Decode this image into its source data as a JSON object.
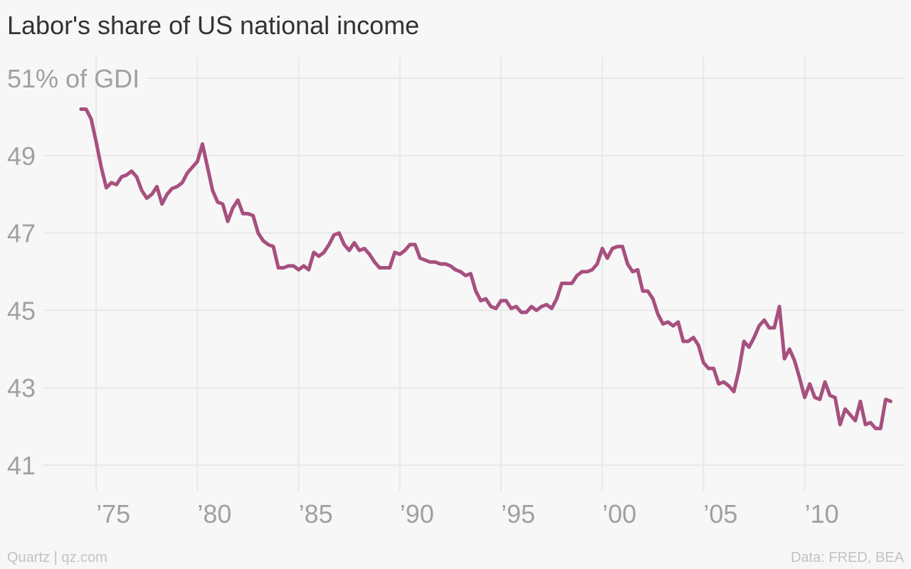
{
  "chart_data": {
    "type": "line",
    "title": "Labor's share of US national income",
    "source": "Data: FRED, BEA",
    "credit": "Quartz | qz.com",
    "x": [
      1974.25,
      1974.5,
      1974.75,
      1975,
      1975.25,
      1975.5,
      1975.75,
      1976,
      1976.25,
      1976.5,
      1976.75,
      1977,
      1977.25,
      1977.5,
      1977.75,
      1978,
      1978.25,
      1978.5,
      1978.75,
      1979,
      1979.25,
      1979.5,
      1979.75,
      1980,
      1980.25,
      1980.5,
      1980.75,
      1981,
      1981.25,
      1981.5,
      1981.75,
      1982,
      1982.25,
      1982.5,
      1982.75,
      1983,
      1983.25,
      1983.5,
      1983.75,
      1984,
      1984.25,
      1984.5,
      1984.75,
      1985,
      1985.25,
      1985.5,
      1985.75,
      1986,
      1986.25,
      1986.5,
      1986.75,
      1987,
      1987.25,
      1987.5,
      1987.75,
      1988,
      1988.25,
      1988.5,
      1988.75,
      1989,
      1989.25,
      1989.5,
      1989.75,
      1990,
      1990.25,
      1990.5,
      1990.75,
      1991,
      1991.25,
      1991.5,
      1991.75,
      1992,
      1992.25,
      1992.5,
      1992.75,
      1993,
      1993.25,
      1993.5,
      1993.75,
      1994,
      1994.25,
      1994.5,
      1994.75,
      1995,
      1995.25,
      1995.5,
      1995.75,
      1996,
      1996.25,
      1996.5,
      1996.75,
      1997,
      1997.25,
      1997.5,
      1997.75,
      1998,
      1998.25,
      1998.5,
      1998.75,
      1999,
      1999.25,
      1999.5,
      1999.75,
      2000,
      2000.25,
      2000.5,
      2000.75,
      2001,
      2001.25,
      2001.5,
      2001.75,
      2002,
      2002.25,
      2002.5,
      2002.75,
      2003,
      2003.25,
      2003.5,
      2003.75,
      2004,
      2004.25,
      2004.5,
      2004.75,
      2005,
      2005.25,
      2005.5,
      2005.75,
      2006,
      2006.25,
      2006.5,
      2006.75,
      2007,
      2007.25,
      2007.5,
      2007.75,
      2008,
      2008.25,
      2008.5,
      2008.75,
      2009,
      2009.25,
      2009.5,
      2009.75,
      2010,
      2010.25,
      2010.5,
      2010.75,
      2011,
      2011.25,
      2011.5,
      2011.75,
      2012,
      2012.25,
      2012.5,
      2012.75,
      2013,
      2013.25,
      2013.5,
      2013.75,
      2014,
      2014.25
    ],
    "series": [
      {
        "color": "#a7507f",
        "values": [
          50.2,
          50.2,
          49.95,
          49.35,
          48.7,
          48.17,
          48.3,
          48.25,
          48.45,
          48.5,
          48.6,
          48.45,
          48.1,
          47.9,
          48.0,
          48.2,
          47.75,
          48.0,
          48.15,
          48.2,
          48.3,
          48.55,
          48.7,
          48.85,
          49.3,
          48.7,
          48.1,
          47.8,
          47.75,
          47.3,
          47.65,
          47.85,
          47.5,
          47.5,
          47.45,
          47.0,
          46.8,
          46.7,
          46.65,
          46.1,
          46.1,
          46.15,
          46.15,
          46.05,
          46.15,
          46.05,
          46.5,
          46.4,
          46.5,
          46.7,
          46.95,
          47.0,
          46.7,
          46.55,
          46.75,
          46.55,
          46.6,
          46.45,
          46.25,
          46.1,
          46.1,
          46.1,
          46.5,
          46.45,
          46.55,
          46.7,
          46.7,
          46.35,
          46.3,
          46.25,
          46.25,
          46.2,
          46.2,
          46.15,
          46.05,
          46.0,
          45.9,
          45.95,
          45.5,
          45.25,
          45.3,
          45.1,
          45.05,
          45.25,
          45.25,
          45.05,
          45.1,
          44.95,
          44.95,
          45.1,
          45.0,
          45.1,
          45.15,
          45.05,
          45.3,
          45.7,
          45.7,
          45.7,
          45.9,
          46.0,
          46.0,
          46.05,
          46.2,
          46.6,
          46.35,
          46.6,
          46.65,
          46.65,
          46.2,
          46.0,
          46.05,
          45.5,
          45.5,
          45.3,
          44.9,
          44.65,
          44.7,
          44.6,
          44.7,
          44.2,
          44.2,
          44.3,
          44.1,
          43.65,
          43.5,
          43.5,
          43.1,
          43.15,
          43.05,
          42.9,
          43.45,
          44.2,
          44.05,
          44.3,
          44.6,
          44.75,
          44.55,
          44.55,
          45.1,
          43.75,
          44.0,
          43.7,
          43.25,
          42.75,
          43.1,
          42.75,
          42.7,
          43.15,
          42.8,
          42.75,
          42.05,
          42.45,
          42.3,
          42.15,
          42.65,
          42.05,
          42.1,
          41.95,
          41.95,
          42.7,
          42.65
        ]
      }
    ],
    "xlim": [
      1970.6,
      2014.9
    ],
    "xticks": [
      {
        "value": 1975,
        "label": "’75"
      },
      {
        "value": 1980,
        "label": "’80"
      },
      {
        "value": 1985,
        "label": "’85"
      },
      {
        "value": 1990,
        "label": "’90"
      },
      {
        "value": 1995,
        "label": "’95"
      },
      {
        "value": 2000,
        "label": "’00"
      },
      {
        "value": 2005,
        "label": "’05"
      },
      {
        "value": 2010,
        "label": "’10"
      }
    ],
    "ylim": [
      41,
      51
    ],
    "yticks": [
      41,
      43,
      45,
      47,
      49,
      {
        "value": 51,
        "label": "51% of GDI"
      }
    ],
    "grid": true
  }
}
